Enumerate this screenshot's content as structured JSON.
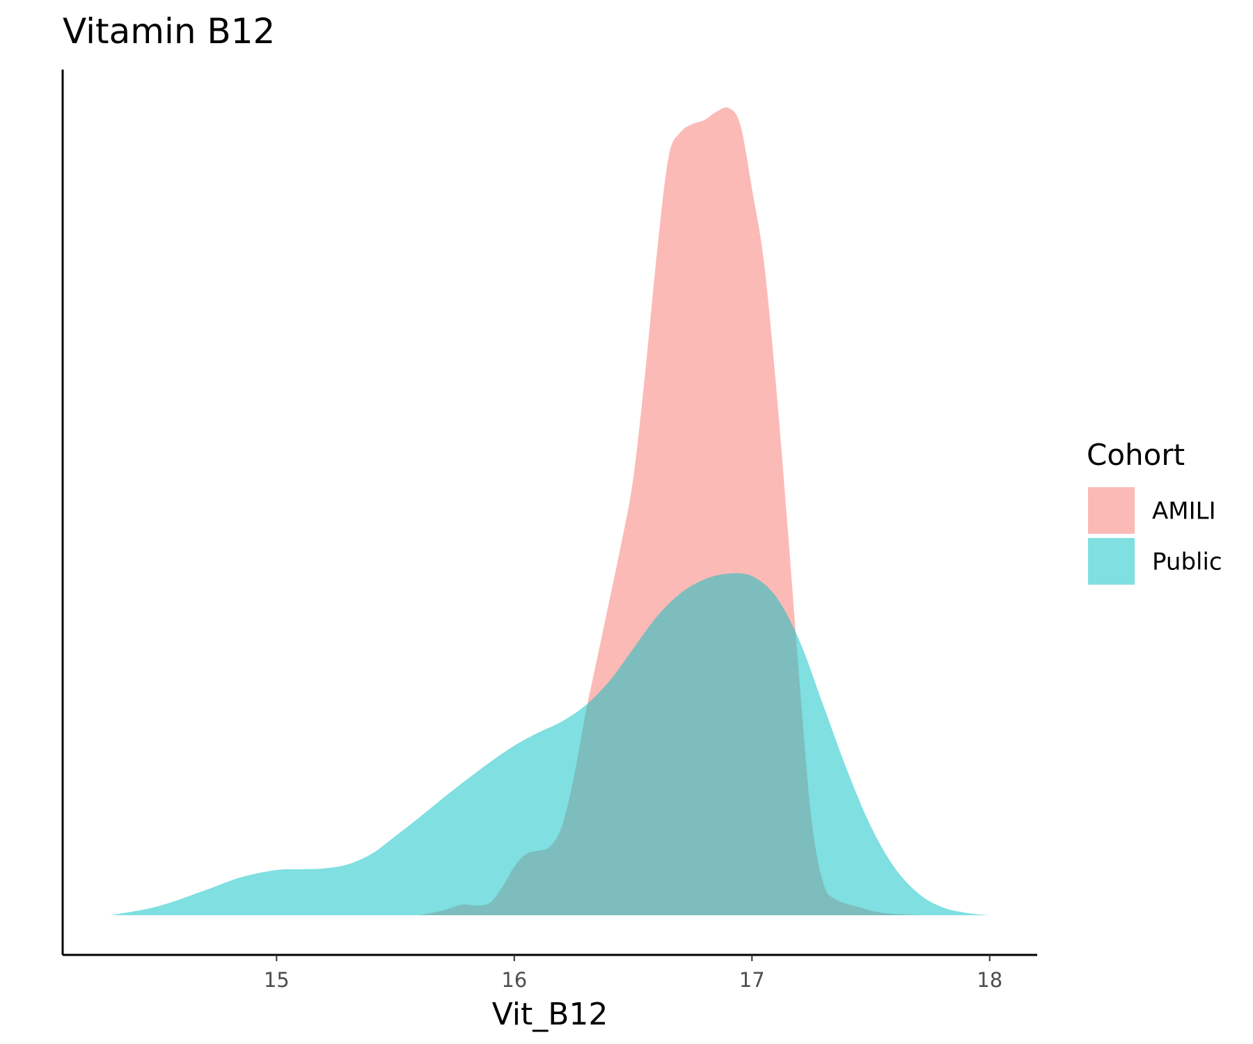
{
  "chart_data": {
    "type": "area",
    "subtype": "density",
    "title": "Vitamin B12",
    "xlabel": "Vit_B12",
    "ylabel": "",
    "xlim": [
      14.1,
      18.2
    ],
    "x_ticks": [
      15,
      16,
      17,
      18
    ],
    "x_tick_labels": [
      "15",
      "16",
      "17",
      "18"
    ],
    "y_ticks": [],
    "ylim": [
      0,
      1.02
    ],
    "grid": false,
    "legend": {
      "title": "Cohort",
      "placement": "right",
      "entries": [
        "AMILI",
        "Public"
      ]
    },
    "series": [
      {
        "name": "AMILI",
        "color": "#F8766D",
        "opacity": 0.5,
        "points": [
          [
            15.6,
            0.0
          ],
          [
            15.7,
            0.006
          ],
          [
            15.78,
            0.013
          ],
          [
            15.85,
            0.012
          ],
          [
            15.9,
            0.016
          ],
          [
            15.95,
            0.035
          ],
          [
            16.0,
            0.06
          ],
          [
            16.05,
            0.076
          ],
          [
            16.1,
            0.08
          ],
          [
            16.15,
            0.085
          ],
          [
            16.2,
            0.11
          ],
          [
            16.25,
            0.17
          ],
          [
            16.3,
            0.25
          ],
          [
            16.35,
            0.32
          ],
          [
            16.4,
            0.39
          ],
          [
            16.45,
            0.46
          ],
          [
            16.5,
            0.54
          ],
          [
            16.55,
            0.67
          ],
          [
            16.6,
            0.82
          ],
          [
            16.65,
            0.94
          ],
          [
            16.7,
            0.97
          ],
          [
            16.75,
            0.98
          ],
          [
            16.8,
            0.985
          ],
          [
            16.85,
            0.995
          ],
          [
            16.9,
            1.0
          ],
          [
            16.95,
            0.98
          ],
          [
            17.0,
            0.9
          ],
          [
            17.05,
            0.81
          ],
          [
            17.1,
            0.66
          ],
          [
            17.15,
            0.48
          ],
          [
            17.2,
            0.29
          ],
          [
            17.25,
            0.12
          ],
          [
            17.3,
            0.04
          ],
          [
            17.35,
            0.02
          ],
          [
            17.45,
            0.01
          ],
          [
            17.55,
            0.003
          ],
          [
            17.7,
            0.0
          ]
        ]
      },
      {
        "name": "Public",
        "color": "#00BFC4",
        "opacity": 0.5,
        "points": [
          [
            14.3,
            0.0
          ],
          [
            14.5,
            0.011
          ],
          [
            14.7,
            0.031
          ],
          [
            14.85,
            0.047
          ],
          [
            15.0,
            0.056
          ],
          [
            15.1,
            0.057
          ],
          [
            15.2,
            0.058
          ],
          [
            15.3,
            0.063
          ],
          [
            15.4,
            0.076
          ],
          [
            15.5,
            0.098
          ],
          [
            15.6,
            0.121
          ],
          [
            15.7,
            0.145
          ],
          [
            15.8,
            0.168
          ],
          [
            15.9,
            0.19
          ],
          [
            16.0,
            0.21
          ],
          [
            16.1,
            0.226
          ],
          [
            16.2,
            0.24
          ],
          [
            16.3,
            0.26
          ],
          [
            16.4,
            0.29
          ],
          [
            16.5,
            0.33
          ],
          [
            16.6,
            0.37
          ],
          [
            16.7,
            0.399
          ],
          [
            16.8,
            0.416
          ],
          [
            16.9,
            0.423
          ],
          [
            17.0,
            0.42
          ],
          [
            17.1,
            0.395
          ],
          [
            17.2,
            0.34
          ],
          [
            17.3,
            0.26
          ],
          [
            17.4,
            0.18
          ],
          [
            17.5,
            0.11
          ],
          [
            17.6,
            0.059
          ],
          [
            17.7,
            0.027
          ],
          [
            17.8,
            0.01
          ],
          [
            17.9,
            0.003
          ],
          [
            18.0,
            0.0
          ]
        ]
      }
    ]
  }
}
